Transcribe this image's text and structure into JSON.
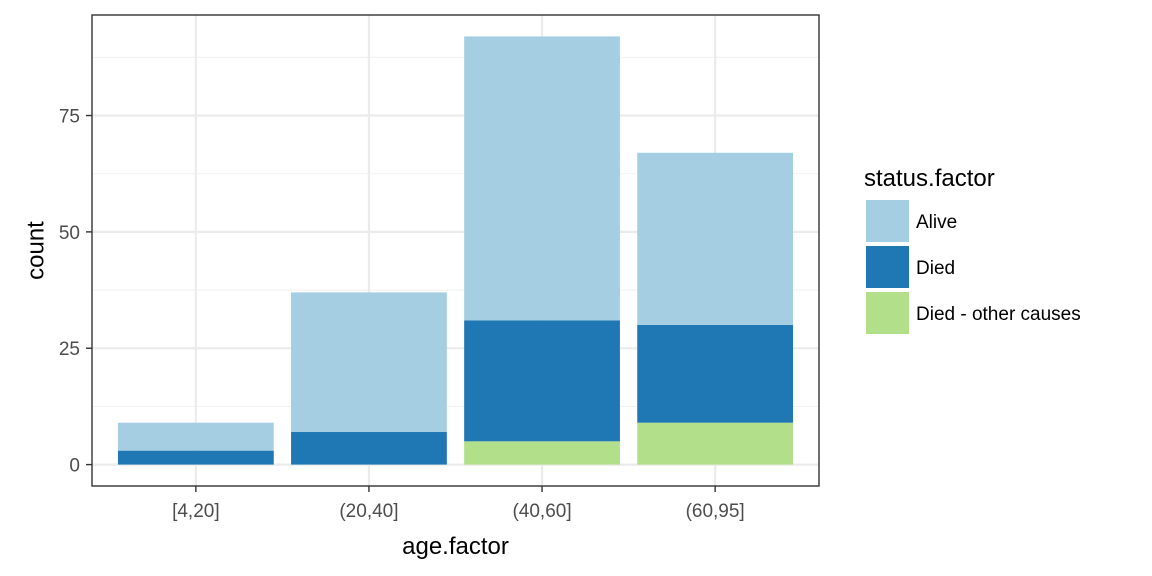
{
  "chart_data": {
    "type": "bar",
    "stacked": true,
    "xlabel": "age.factor",
    "ylabel": "count",
    "categories": [
      "[4,20]",
      "(20,40]",
      "(40,60]",
      "(60,95]"
    ],
    "series": [
      {
        "name": "Died - other causes",
        "values": [
          0,
          0,
          5,
          9
        ],
        "color": "#b2df8a"
      },
      {
        "name": "Died",
        "values": [
          3,
          7,
          26,
          21
        ],
        "color": "#1f78b4"
      },
      {
        "name": "Alive",
        "values": [
          6,
          30,
          61,
          37
        ],
        "color": "#a6cee3"
      }
    ],
    "ylim": [
      -4.6,
      96.6
    ],
    "yticks": [
      0,
      25,
      50,
      75
    ],
    "grid": true,
    "legend": {
      "title": "status.factor",
      "position": "right",
      "entries": [
        "Alive",
        "Died",
        "Died - other causes"
      ]
    }
  }
}
